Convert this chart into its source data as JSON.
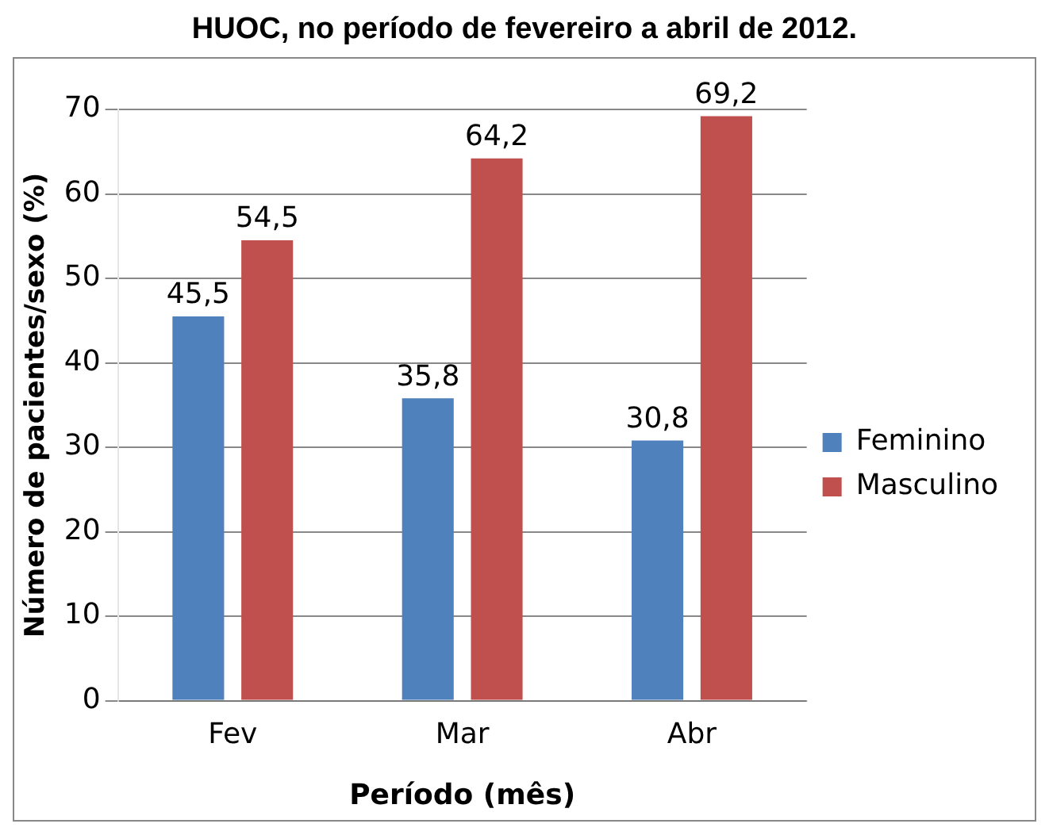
{
  "chart_data": {
    "type": "bar",
    "title": "HUOC, no período de fevereiro a abril de 2012.",
    "xlabel": "Período (mês)",
    "ylabel": "Número de pacientes/sexo (%)",
    "categories": [
      "Fev",
      "Mar",
      "Abr"
    ],
    "series": [
      {
        "name": "Feminino",
        "color": "#4f81bd",
        "values": [
          45.5,
          35.8,
          30.8
        ],
        "value_labels": [
          "45,5",
          "35,8",
          "30,8"
        ]
      },
      {
        "name": "Masculino",
        "color": "#c0504d",
        "values": [
          54.5,
          64.2,
          69.2
        ],
        "value_labels": [
          "54,5",
          "64,2",
          "69,2"
        ]
      }
    ],
    "ylim": [
      0,
      70
    ],
    "yticks": [
      0,
      10,
      20,
      30,
      40,
      50,
      60,
      70
    ],
    "grid": "y",
    "legend": "right"
  }
}
